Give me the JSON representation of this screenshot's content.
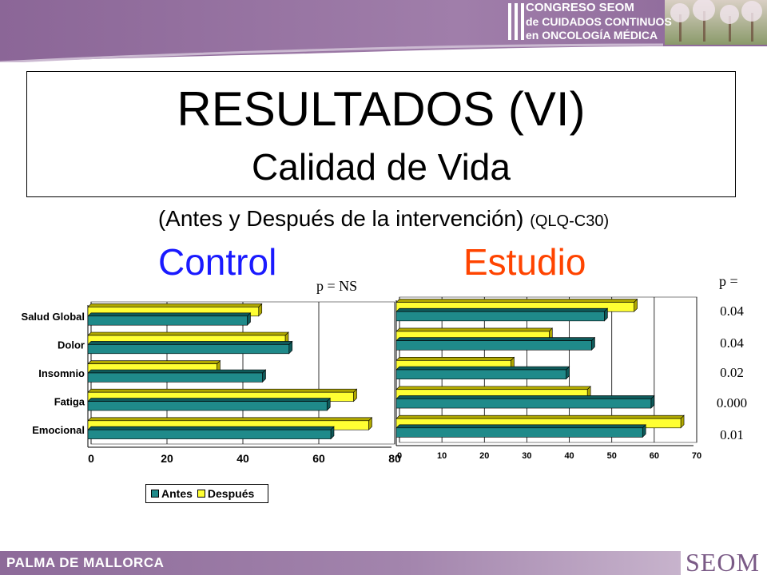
{
  "header": {
    "congress_lines": [
      "CONGRESO SEOM",
      "de CUIDADOS CONTINUOS",
      "en ONCOLOGÍA MÉDICA"
    ]
  },
  "title": {
    "main": "RESULTADOS (VI)",
    "sub": "Calidad de Vida"
  },
  "subtitle": {
    "text": "(Antes y Después de la intervención)",
    "small": "(QLQ-C30)"
  },
  "groups": {
    "control": "Control",
    "study": "Estudio"
  },
  "pvalues": {
    "control_header": "p = NS",
    "study_header": "p =",
    "study_values": [
      "0.04",
      "0.04",
      "0.02",
      "0.000",
      "0.01"
    ]
  },
  "colors": {
    "antes": "#1f8a8a",
    "despues": "#ffff33",
    "control_label": "#1a1aff",
    "study_label": "#ff4400"
  },
  "chart_data": [
    {
      "type": "bar",
      "orientation": "horizontal",
      "categories": [
        "Salud Global",
        "Dolor",
        "Insomnio",
        "Fatiga",
        "Emocional"
      ],
      "series": [
        {
          "name": "Antes",
          "values": [
            42,
            53,
            46,
            63,
            64
          ]
        },
        {
          "name": "Después",
          "values": [
            45,
            52,
            34,
            70,
            74
          ]
        }
      ],
      "xlim": [
        0,
        80
      ],
      "xticks": [
        "0",
        "20",
        "40",
        "60",
        "80"
      ],
      "grid": true,
      "legend": "bottom"
    },
    {
      "type": "bar",
      "orientation": "horizontal",
      "categories": [
        "Salud Global",
        "Dolor",
        "Insomnio",
        "Fatiga",
        "Emocional"
      ],
      "series": [
        {
          "name": "Antes",
          "values": [
            49,
            46,
            40,
            60,
            58
          ]
        },
        {
          "name": "Después",
          "values": [
            56,
            36,
            27,
            45,
            67
          ]
        }
      ],
      "xlim": [
        0,
        70
      ],
      "xticks": [
        "0",
        "10",
        "20",
        "30",
        "40",
        "50",
        "60",
        "70"
      ],
      "grid": true
    }
  ],
  "legend": {
    "antes": "Antes",
    "despues": "Después"
  },
  "footer": {
    "text": "PALMA DE MALLORCA",
    "logo": "SEOM"
  }
}
